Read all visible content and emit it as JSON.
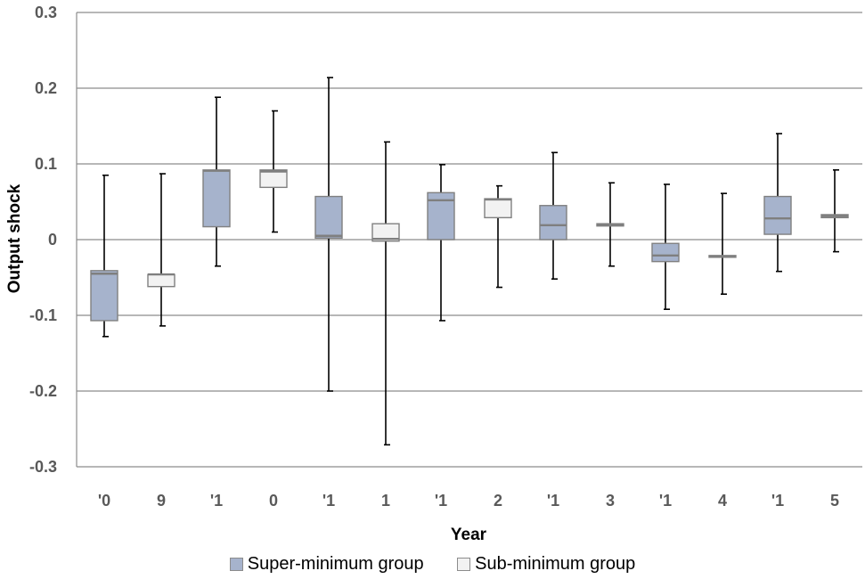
{
  "chart_data": {
    "type": "boxplot",
    "ylabel": "Output shock",
    "xlabel": "Year",
    "ylim": [
      -0.3,
      0.3
    ],
    "yticks": [
      -0.3,
      -0.2,
      -0.1,
      0,
      0.1,
      0.2,
      0.3
    ],
    "ytick_labels": [
      "-0.3",
      "-0.2",
      "-0.1",
      "0",
      "0.1",
      "0.2",
      "0.3"
    ],
    "grid": true,
    "legend_position": "bottom",
    "categories": [
      [
        "'0",
        "9"
      ],
      [
        "'1",
        "0"
      ],
      [
        "'1",
        "1"
      ],
      [
        "'1",
        "2"
      ],
      [
        "'1",
        "3"
      ],
      [
        "'1",
        "4"
      ],
      [
        "'1",
        "5"
      ]
    ],
    "series": [
      {
        "name": "Super-minimum group",
        "color": "#a6b3cc",
        "boxes": [
          {
            "min": -0.128,
            "q1": -0.107,
            "median": -0.045,
            "q3": -0.041,
            "max": 0.085
          },
          {
            "min": -0.035,
            "q1": 0.017,
            "median": 0.091,
            "q3": 0.092,
            "max": 0.188
          },
          {
            "min": -0.2,
            "q1": 0.002,
            "median": 0.005,
            "q3": 0.057,
            "max": 0.214
          },
          {
            "min": -0.107,
            "q1": 0.0,
            "median": 0.052,
            "q3": 0.062,
            "max": 0.099
          },
          {
            "min": -0.052,
            "q1": 0.0,
            "median": 0.019,
            "q3": 0.045,
            "max": 0.115
          },
          {
            "min": -0.092,
            "q1": -0.029,
            "median": -0.021,
            "q3": -0.005,
            "max": 0.073
          },
          {
            "min": -0.042,
            "q1": 0.007,
            "median": 0.028,
            "q3": 0.057,
            "max": 0.14
          }
        ]
      },
      {
        "name": "Sub-minimum group",
        "color": "#f2f2f2",
        "boxes": [
          {
            "min": -0.114,
            "q1": -0.062,
            "median": -0.046,
            "q3": -0.046,
            "max": 0.087
          },
          {
            "min": 0.01,
            "q1": 0.069,
            "median": 0.09,
            "q3": 0.092,
            "max": 0.17
          },
          {
            "min": -0.271,
            "q1": -0.002,
            "median": 0.001,
            "q3": 0.021,
            "max": 0.129
          },
          {
            "min": -0.063,
            "q1": 0.029,
            "median": 0.053,
            "q3": 0.054,
            "max": 0.071
          },
          {
            "min": -0.035,
            "q1": 0.018,
            "median": 0.02,
            "q3": 0.021,
            "max": 0.075
          },
          {
            "min": -0.072,
            "q1": -0.023,
            "median": -0.022,
            "q3": -0.021,
            "max": 0.061
          },
          {
            "min": -0.016,
            "q1": 0.029,
            "median": 0.031,
            "q3": 0.033,
            "max": 0.092
          }
        ]
      }
    ]
  }
}
